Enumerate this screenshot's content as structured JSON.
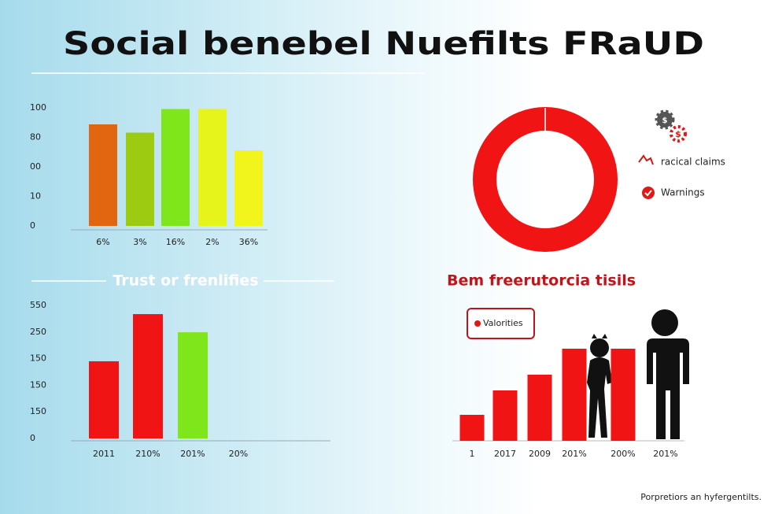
{
  "title": "Social benebel Nuefilts FRaUD",
  "footer": "Porpretiors an hyfergentilts.",
  "chart_data": [
    {
      "type": "bar",
      "categories": [
        "6%",
        "3%",
        "16%",
        "2%",
        "36%"
      ],
      "values": [
        86,
        79,
        99,
        99,
        64
      ],
      "colors": [
        "#e2660f",
        "#9ccb12",
        "#7ee61a",
        "#e6f41c",
        "#f2f51c"
      ],
      "ylim": [
        0,
        100
      ],
      "yticks": [
        0,
        {
          "value": 25,
          "label": "10"
        },
        {
          "value": 50,
          "label": "00"
        },
        {
          "value": 75,
          "label": "80"
        },
        100
      ]
    },
    {
      "type": "pie",
      "categories": [
        "racical claims",
        "Warnings"
      ],
      "values": [
        100,
        0
      ],
      "colors": [
        "#f01414",
        "#f01414"
      ]
    },
    {
      "type": "bar",
      "title": "Trust or frenlifies",
      "categories": [
        "2011",
        "210%",
        "201%",
        "20%"
      ],
      "values": [
        319,
        514,
        439,
        null
      ],
      "colors": [
        "#f01414",
        "#f01414",
        "#7ee61a",
        "#f01414"
      ],
      "ylim": [
        0,
        550
      ],
      "yticks": [
        0,
        {
          "value": 110,
          "label": "150"
        },
        {
          "value": 220,
          "label": "150"
        },
        {
          "value": 330,
          "label": "150"
        },
        {
          "value": 440,
          "label": "250"
        },
        550
      ]
    },
    {
      "type": "bar",
      "title": "Bem freerutorcia tisils",
      "categories": [
        "1",
        "2017",
        "2009",
        "201%",
        "200%",
        "201%"
      ],
      "series": [
        {
          "name": "Valorities",
          "color": "#f01414",
          "values": [
            33,
            64,
            84,
            117,
            117,
            null
          ]
        }
      ],
      "ylim": [
        0,
        120
      ]
    }
  ]
}
